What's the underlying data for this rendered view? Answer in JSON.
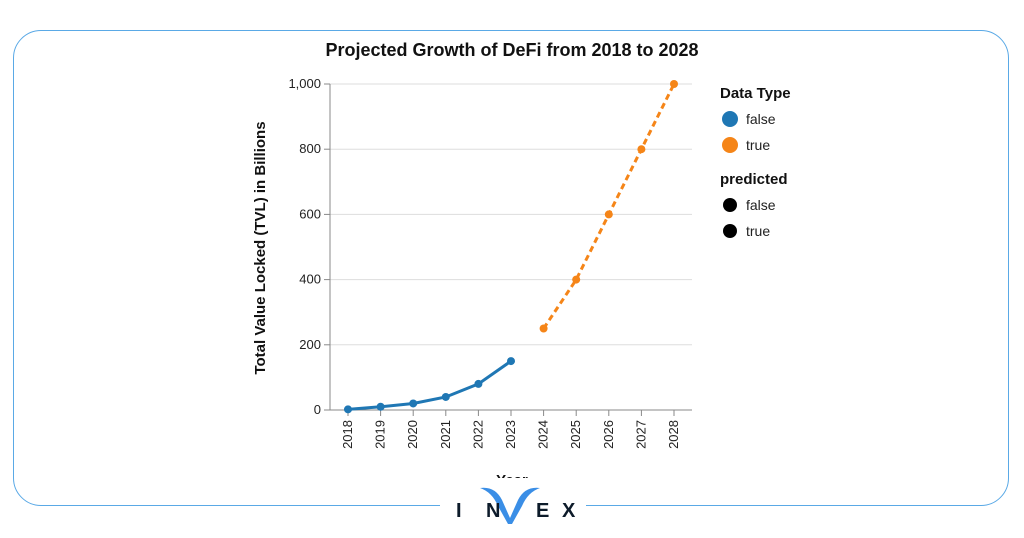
{
  "chart_data": {
    "type": "line",
    "title": "Projected Growth of DeFi from 2018 to 2028",
    "xlabel": "Year",
    "ylabel": "Total Value Locked (TVL) in Billions",
    "ylim": [
      0,
      1000
    ],
    "y_ticks": [
      "0",
      "200",
      "400",
      "600",
      "800",
      "1,000"
    ],
    "categories": [
      "2018",
      "2019",
      "2020",
      "2021",
      "2022",
      "2023",
      "2024",
      "2025",
      "2026",
      "2027",
      "2028"
    ],
    "series": [
      {
        "name": "false",
        "color": "#1f77b4",
        "style": "solid",
        "x": [
          "2018",
          "2019",
          "2020",
          "2021",
          "2022",
          "2023"
        ],
        "values": [
          2,
          10,
          20,
          40,
          80,
          150
        ]
      },
      {
        "name": "true",
        "color": "#f58518",
        "style": "dashed",
        "x": [
          "2024",
          "2025",
          "2026",
          "2027",
          "2028"
        ],
        "values": [
          250,
          400,
          600,
          800,
          1000
        ]
      }
    ],
    "grid": true,
    "legend_position": "right",
    "legends": [
      {
        "title": "Data Type",
        "entries": [
          {
            "label": "false",
            "color": "#1f77b4"
          },
          {
            "label": "true",
            "color": "#f58518"
          }
        ]
      },
      {
        "title": "predicted",
        "entries": [
          {
            "label": "false",
            "color": "#000000"
          },
          {
            "label": "true",
            "color": "#000000"
          }
        ]
      }
    ]
  },
  "logo": {
    "letters": [
      "I",
      "N",
      "E",
      "X"
    ],
    "accent": "#3a8ee6"
  }
}
